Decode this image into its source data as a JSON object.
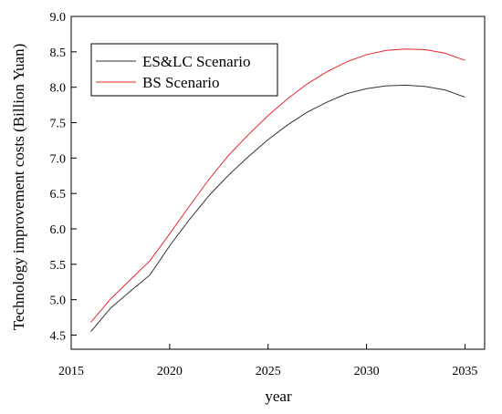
{
  "chart_data": {
    "type": "line",
    "title": "",
    "xlabel": "year",
    "ylabel": "Technology improvement costs (Billion Yuan)",
    "xlim": [
      2015,
      2036
    ],
    "ylim": [
      4.3,
      9.0
    ],
    "xticks": [
      2015,
      2020,
      2025,
      2030,
      2035
    ],
    "xtick_labels": [
      "2015",
      "2020",
      "2025",
      "2030",
      "2035"
    ],
    "yticks": [
      4.5,
      5.0,
      5.5,
      6.0,
      6.5,
      7.0,
      7.5,
      8.0,
      8.5,
      9.0
    ],
    "ytick_labels": [
      "4.5",
      "5.0",
      "5.5",
      "6.0",
      "6.5",
      "7.0",
      "7.5",
      "8.0",
      "8.5",
      "9.0"
    ],
    "grid": false,
    "legend_position": "top-left",
    "x": [
      2016,
      2017,
      2018,
      2019,
      2020,
      2021,
      2022,
      2023,
      2024,
      2025,
      2026,
      2027,
      2028,
      2029,
      2030,
      2031,
      2032,
      2033,
      2034,
      2035
    ],
    "series": [
      {
        "name": "ES&LC Scenario",
        "color": "#333333",
        "values": [
          4.55,
          4.88,
          5.12,
          5.35,
          5.76,
          6.13,
          6.47,
          6.76,
          7.02,
          7.26,
          7.47,
          7.65,
          7.79,
          7.91,
          7.98,
          8.02,
          8.03,
          8.01,
          7.96,
          7.86
        ]
      },
      {
        "name": "BS Scenario",
        "color": "#e8252e",
        "values": [
          4.68,
          5.01,
          5.28,
          5.55,
          5.93,
          6.32,
          6.7,
          7.04,
          7.33,
          7.6,
          7.84,
          8.05,
          8.22,
          8.36,
          8.46,
          8.52,
          8.54,
          8.53,
          8.48,
          8.38
        ]
      }
    ]
  }
}
